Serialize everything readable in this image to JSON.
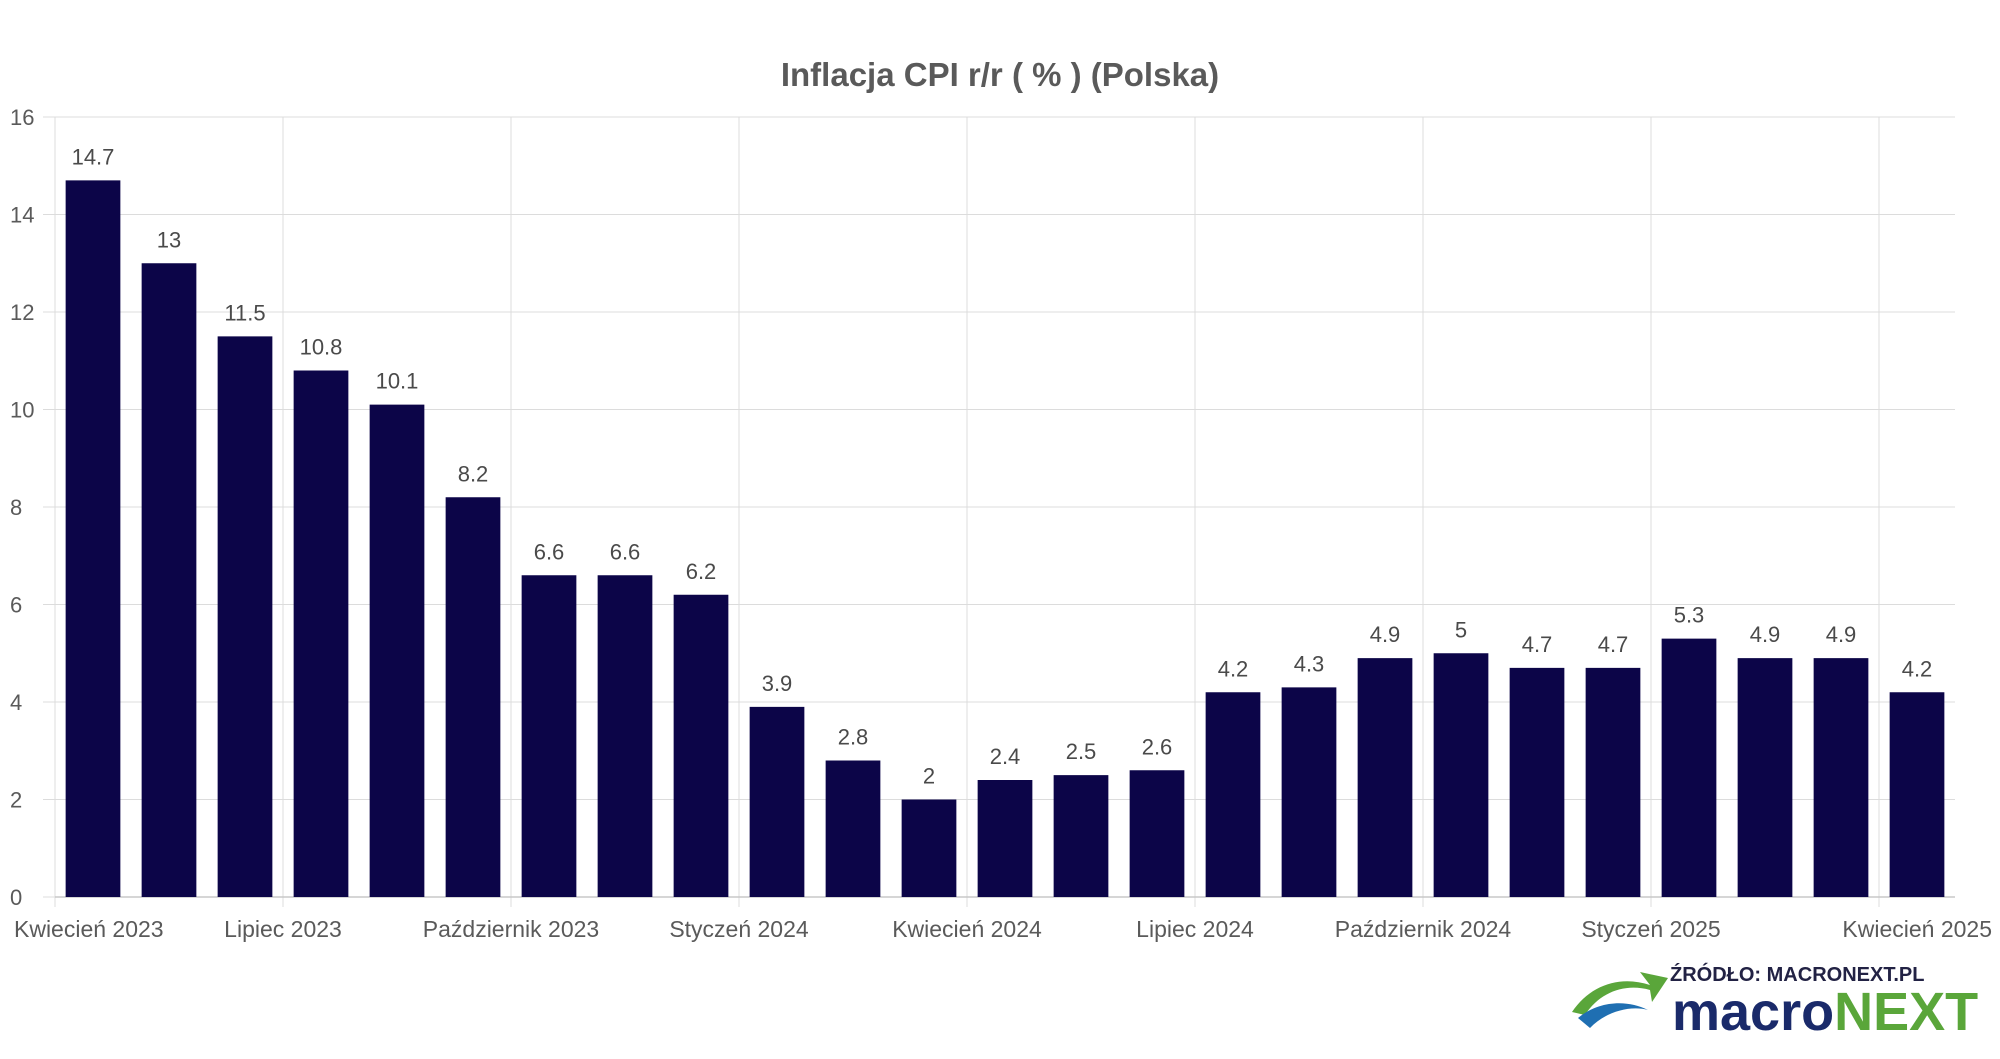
{
  "chart_data": {
    "type": "bar",
    "title": "Inflacja CPI r/r ( % ) (Polska)",
    "xlabel": "",
    "ylabel": "",
    "ylim": [
      0,
      16
    ],
    "yticks": [
      0,
      2,
      4,
      6,
      8,
      10,
      12,
      14,
      16
    ],
    "grid": true,
    "bar_color": "#0c0548",
    "categories": [
      "2023-04",
      "2023-05",
      "2023-06",
      "2023-07",
      "2023-08",
      "2023-09",
      "2023-10",
      "2023-11",
      "2023-12",
      "2024-01",
      "2024-02",
      "2024-03",
      "2024-04",
      "2024-05",
      "2024-06",
      "2024-07",
      "2024-08",
      "2024-09",
      "2024-10",
      "2024-11",
      "2024-12",
      "2025-01",
      "2025-02",
      "2025-03",
      "2025-04"
    ],
    "values": [
      14.7,
      13,
      11.5,
      10.8,
      10.1,
      8.2,
      6.6,
      6.6,
      6.2,
      3.9,
      2.8,
      2,
      2.4,
      2.5,
      2.6,
      4.2,
      4.3,
      4.9,
      5,
      4.7,
      4.7,
      5.3,
      4.9,
      4.9,
      4.2
    ],
    "value_labels": [
      "14.7",
      "13",
      "11.5",
      "10.8",
      "10.1",
      "8.2",
      "6.6",
      "6.6",
      "6.2",
      "3.9",
      "2.8",
      "2",
      "2.4",
      "2.5",
      "2.6",
      "4.2",
      "4.3",
      "4.9",
      "5",
      "4.7",
      "4.7",
      "5.3",
      "4.9",
      "4.9",
      "4.2"
    ],
    "x_tick_labels": [
      {
        "index": 0,
        "label": "Kwiecień 2023"
      },
      {
        "index": 3,
        "label": "Lipiec 2023"
      },
      {
        "index": 6,
        "label": "Październik 2023"
      },
      {
        "index": 9,
        "label": "Styczeń 2024"
      },
      {
        "index": 12,
        "label": "Kwiecień 2024"
      },
      {
        "index": 15,
        "label": "Lipiec 2024"
      },
      {
        "index": 18,
        "label": "Październik 2024"
      },
      {
        "index": 21,
        "label": "Styczeń 2025"
      },
      {
        "index": 24,
        "label": "Kwiecień 2025"
      }
    ]
  },
  "source": {
    "text": "ŹRÓDŁO: MACRONEXT.PL",
    "brand_part1": "macro",
    "brand_part2": "NEXT",
    "brand_color_1": "#1a2a6a",
    "brand_color_2": "#5aa63a",
    "logo_icon": "green-arrow-swoosh-icon"
  }
}
